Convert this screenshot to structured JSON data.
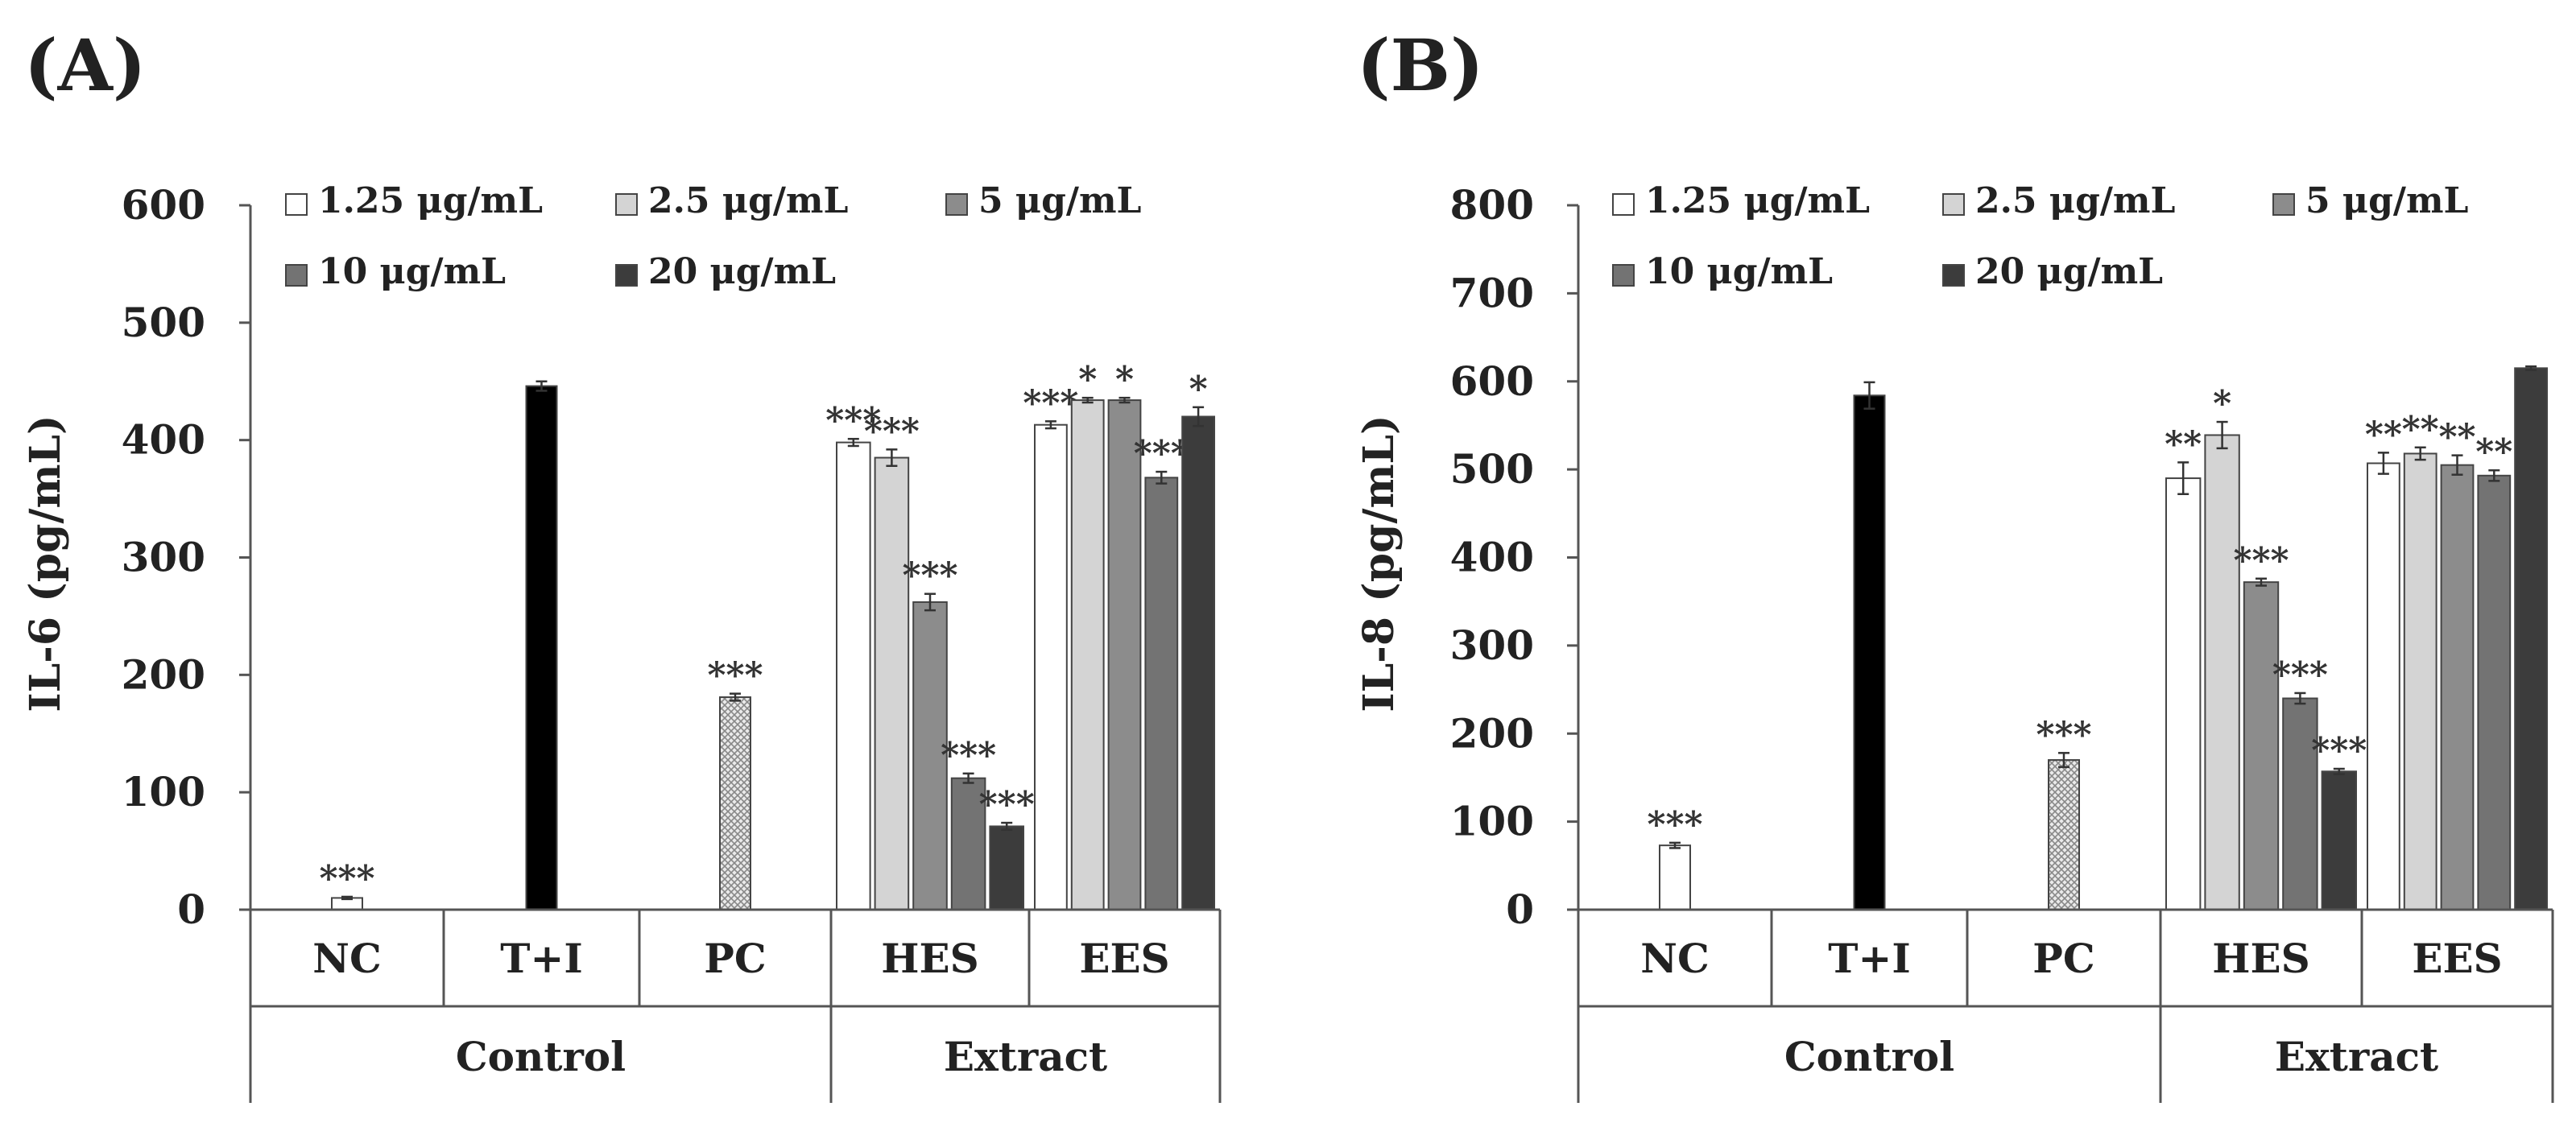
{
  "colors": {
    "c1": "#ffffff",
    "c2": "#d4d4d4",
    "c3": "#8c8c8c",
    "c4": "#737373",
    "c5": "#3c3c3c",
    "ti": "#000000",
    "pc_fill": "#e8e8e8",
    "stroke": "#444444",
    "axis": "#555555"
  },
  "chart_data": [
    {
      "type": "bar",
      "panel_label": "(A)",
      "ylabel": "IL-6 (pg/mL)",
      "ylim": [
        0,
        600
      ],
      "yticks": [
        "0",
        "100",
        "200",
        "300",
        "400",
        "500",
        "600"
      ],
      "legend": [
        "1.25 μg/mL",
        "2.5 μg/mL",
        "5 μg/mL",
        "10 μg/mL",
        "20 μg/mL"
      ],
      "categories": [
        "NC",
        "T+I",
        "PC",
        "HES",
        "EES"
      ],
      "super_groups": [
        "Control",
        "Extract"
      ],
      "bars": {
        "NC": {
          "value": 10,
          "err": 1,
          "label": "***"
        },
        "T+I": {
          "value": 446,
          "err": 4,
          "label": ""
        },
        "PC": {
          "value": 181,
          "err": 3,
          "label": "***"
        },
        "HES": {
          "values": [
            398,
            385,
            262,
            112,
            71
          ],
          "errs": [
            3,
            7,
            7,
            4,
            3
          ],
          "labels": [
            "***",
            "***",
            "***",
            "***",
            "***"
          ]
        },
        "EES": {
          "values": [
            413,
            434,
            434,
            368,
            420
          ],
          "errs": [
            3,
            2,
            2,
            5,
            8
          ],
          "labels": [
            "***",
            "*",
            "*",
            "***",
            "*"
          ]
        }
      }
    },
    {
      "type": "bar",
      "panel_label": "(B)",
      "ylabel": "IL-8 (pg/mL)",
      "ylim": [
        0,
        800
      ],
      "yticks": [
        "0",
        "100",
        "200",
        "300",
        "400",
        "500",
        "600",
        "700",
        "800"
      ],
      "legend": [
        "1.25 μg/mL",
        "2.5 μg/mL",
        "5 μg/mL",
        "10 μg/mL",
        "20 μg/mL"
      ],
      "categories": [
        "NC",
        "T+I",
        "PC",
        "HES",
        "EES"
      ],
      "super_groups": [
        "Control",
        "Extract"
      ],
      "bars": {
        "NC": {
          "value": 73,
          "err": 3,
          "label": "***"
        },
        "T+I": {
          "value": 584,
          "err": 15,
          "label": ""
        },
        "PC": {
          "value": 170,
          "err": 8,
          "label": "***"
        },
        "HES": {
          "values": [
            490,
            539,
            372,
            240,
            157
          ],
          "errs": [
            18,
            15,
            4,
            6,
            3
          ],
          "labels": [
            "**",
            "*",
            "***",
            "***",
            "***"
          ]
        },
        "EES": {
          "values": [
            507,
            518,
            505,
            493,
            615
          ],
          "errs": [
            12,
            7,
            11,
            6,
            2
          ],
          "labels": [
            "**",
            "**",
            "**",
            "**",
            ""
          ]
        }
      }
    }
  ]
}
